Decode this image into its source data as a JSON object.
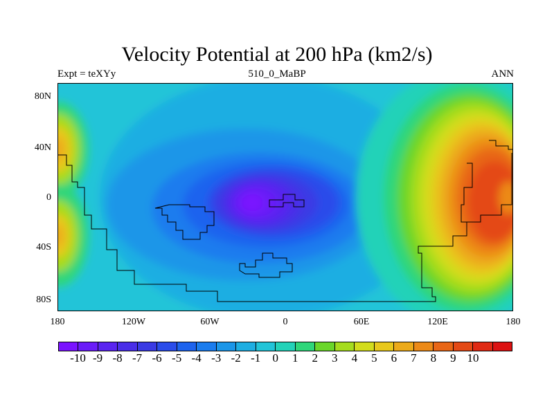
{
  "title": "Velocity Potential at 200 hPa (km2/s)",
  "subtitle_left": "Expt = teXYy",
  "subtitle_center": "510_0_MaBP",
  "subtitle_right": "ANN",
  "lat_labels": [
    "80N",
    "40N",
    "0",
    "40S",
    "80S"
  ],
  "lon_labels": [
    "180",
    "120W",
    "60W",
    "0",
    "60E",
    "120E",
    "180"
  ],
  "colorbar": {
    "labels": [
      "-10",
      "-9",
      "-8",
      "-7",
      "-6",
      "-5",
      "-4",
      "-3",
      "-2",
      "-1",
      "0",
      "1",
      "2",
      "3",
      "4",
      "5",
      "6",
      "7",
      "8",
      "9",
      "10"
    ],
    "colors": [
      "#7a13ff",
      "#6a1cf8",
      "#5a24f0",
      "#4a2ee8",
      "#3a3ae4",
      "#2a4cea",
      "#1d63ee",
      "#1a7cee",
      "#1b96e8",
      "#1eaee2",
      "#22c4d8",
      "#23d2b8",
      "#2fd67a",
      "#6ad62a",
      "#a5dc1e",
      "#d2dc1c",
      "#e8c81c",
      "#ecaa1a",
      "#ec8a18",
      "#e86616",
      "#e44a16",
      "#e02a14",
      "#dc1212"
    ]
  },
  "chart_data": {
    "type": "contour-map",
    "field": "Velocity Potential at 200 hPa",
    "units": "km2/s",
    "projection": "cylindrical-equidistant",
    "lon_range": [
      -180,
      180
    ],
    "lat_range": [
      -90,
      90
    ],
    "contour_interval": 1,
    "levels": [
      -10,
      -9,
      -8,
      -7,
      -6,
      -5,
      -4,
      -3,
      -2,
      -1,
      0,
      1,
      2,
      3,
      4,
      5,
      6,
      7,
      8,
      9,
      10
    ],
    "features": [
      {
        "kind": "minimum",
        "lon": -18,
        "lat": 0,
        "value": -9.5
      },
      {
        "kind": "maximum",
        "lon": 140,
        "lat": 0,
        "value": 9.5
      },
      {
        "kind": "secondary-maximum",
        "lon": -175,
        "lat": 35,
        "value": 5
      },
      {
        "kind": "secondary-maximum",
        "lon": -175,
        "lat": -35,
        "value": 5
      }
    ]
  }
}
